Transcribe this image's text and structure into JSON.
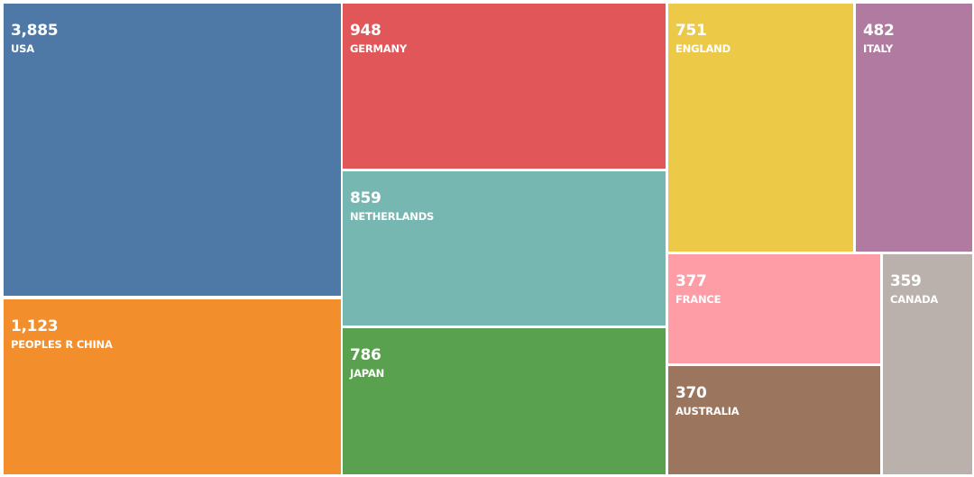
{
  "chart_data": {
    "type": "treemap",
    "items": [
      {
        "label": "USA",
        "value": 3885,
        "display": "3,885",
        "color": "#4e79a7"
      },
      {
        "label": "PEOPLES R CHINA",
        "value": 1123,
        "display": "1,123",
        "color": "#f28e2b"
      },
      {
        "label": "GERMANY",
        "value": 948,
        "display": "948",
        "color": "#e15759"
      },
      {
        "label": "NETHERLANDS",
        "value": 859,
        "display": "859",
        "color": "#76b7b2"
      },
      {
        "label": "JAPAN",
        "value": 786,
        "display": "786",
        "color": "#59a14f"
      },
      {
        "label": "ENGLAND",
        "value": 751,
        "display": "751",
        "color": "#edc948"
      },
      {
        "label": "ITALY",
        "value": 482,
        "display": "482",
        "color": "#b07aa1"
      },
      {
        "label": "FRANCE",
        "value": 377,
        "display": "377",
        "color": "#ff9da7"
      },
      {
        "label": "AUSTRALIA",
        "value": 370,
        "display": "370",
        "color": "#9c755f"
      },
      {
        "label": "CANADA",
        "value": 359,
        "display": "359",
        "color": "#bab0ac"
      }
    ]
  }
}
